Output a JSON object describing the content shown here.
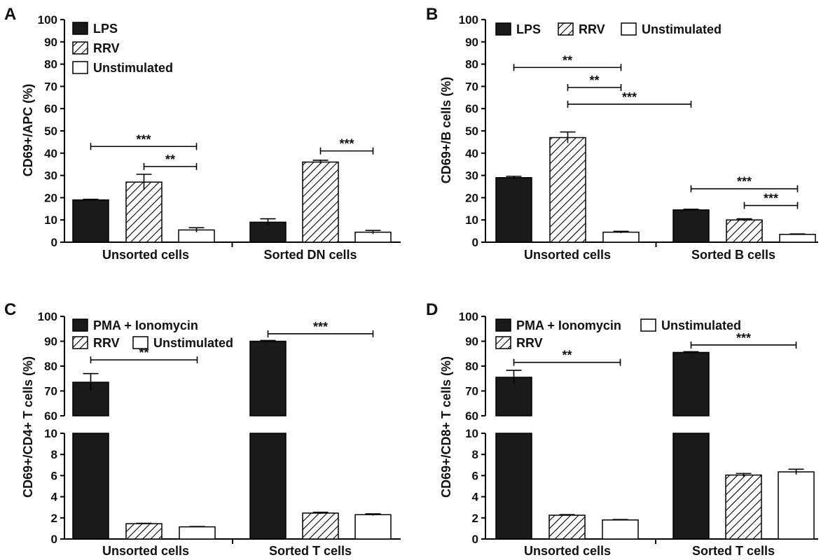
{
  "colors": {
    "lps_fill": "#1a1a1a",
    "axis": "#000000",
    "hatch": "#000000",
    "background": "#ffffff"
  },
  "chart_data": [
    {
      "panel": "A",
      "type": "bar",
      "ylabel": "CD69+/APC (%)",
      "ylim": [
        0,
        100
      ],
      "yticks": [
        0,
        10,
        20,
        30,
        40,
        50,
        60,
        70,
        80,
        90,
        100
      ],
      "categories": [
        "Unsorted cells",
        "Sorted DN cells"
      ],
      "series": [
        {
          "name": "LPS",
          "pattern": "solid",
          "values": [
            19,
            9
          ],
          "errors": [
            0.3,
            1.5
          ]
        },
        {
          "name": "RRV",
          "pattern": "hatch",
          "values": [
            27,
            36
          ],
          "errors": [
            3.5,
            0.8
          ]
        },
        {
          "name": "Unstimulated",
          "pattern": "white",
          "values": [
            5.5,
            4.5
          ],
          "errors": [
            1.0,
            0.8
          ]
        }
      ],
      "legend": {
        "placement": "top-left",
        "layout": "column"
      },
      "annotations": [
        {
          "from": [
            0,
            0
          ],
          "to": [
            0,
            2
          ],
          "y": 43,
          "label": "***"
        },
        {
          "from": [
            0,
            1
          ],
          "to": [
            0,
            2
          ],
          "y": 34,
          "label": "**"
        },
        {
          "from": [
            1,
            1
          ],
          "to": [
            1,
            2
          ],
          "y": 41,
          "label": "***"
        }
      ]
    },
    {
      "panel": "B",
      "type": "bar",
      "ylabel": "CD69+/B cells (%)",
      "ylim": [
        0,
        100
      ],
      "yticks": [
        0,
        10,
        20,
        30,
        40,
        50,
        60,
        70,
        80,
        90,
        100
      ],
      "categories": [
        "Unsorted cells",
        "Sorted B cells"
      ],
      "series": [
        {
          "name": "LPS",
          "pattern": "solid",
          "values": [
            29,
            14.5
          ],
          "errors": [
            0.6,
            0.3
          ]
        },
        {
          "name": "RRV",
          "pattern": "hatch",
          "values": [
            47,
            10
          ],
          "errors": [
            2.5,
            0.5
          ]
        },
        {
          "name": "Unstimulated",
          "pattern": "white",
          "values": [
            4.5,
            3.5
          ],
          "errors": [
            0.4,
            0.2
          ]
        }
      ],
      "legend": {
        "placement": "top",
        "layout": "row"
      },
      "annotations": [
        {
          "from": [
            0,
            0
          ],
          "to": [
            0,
            2
          ],
          "y": 78.5,
          "label": "**"
        },
        {
          "from": [
            0,
            1
          ],
          "to": [
            0,
            2
          ],
          "y": 69.5,
          "label": "**"
        },
        {
          "from": [
            0,
            1
          ],
          "to": [
            1,
            0
          ],
          "y": 62,
          "label": "***"
        },
        {
          "from": [
            1,
            0
          ],
          "to": [
            1,
            2
          ],
          "y": 24,
          "label": "***"
        },
        {
          "from": [
            1,
            1
          ],
          "to": [
            1,
            2
          ],
          "y": 16.5,
          "label": "***"
        }
      ]
    },
    {
      "panel": "C",
      "type": "bar",
      "ylabel": "CD69+/CD4+ T cells (%)",
      "broken_axis": {
        "lower_ylim": [
          0,
          10
        ],
        "lower_ticks": [
          0,
          2,
          4,
          6,
          8,
          10
        ],
        "upper_ylim": [
          60,
          100
        ],
        "upper_ticks": [
          60,
          70,
          80,
          90,
          100
        ]
      },
      "categories": [
        "Unsorted cells",
        "Sorted T cells"
      ],
      "series": [
        {
          "name": "PMA + Ionomycin",
          "pattern": "solid",
          "values": [
            73.5,
            90
          ],
          "errors": [
            3.5,
            0.3
          ]
        },
        {
          "name": "RRV",
          "pattern": "hatch",
          "values": [
            1.45,
            2.45
          ],
          "errors": [
            0.04,
            0.08
          ]
        },
        {
          "name": "Unstimulated",
          "pattern": "white",
          "values": [
            1.15,
            2.3
          ],
          "errors": [
            0.03,
            0.08
          ]
        }
      ],
      "legend": {
        "placement": "top-left",
        "layout": "grid-2col-rrv-row"
      },
      "annotations": [
        {
          "from": [
            0,
            0
          ],
          "to": [
            0,
            2
          ],
          "y": 82.5,
          "label": "**"
        },
        {
          "from": [
            1,
            0
          ],
          "to": [
            1,
            2
          ],
          "y": 93,
          "label": "***"
        }
      ]
    },
    {
      "panel": "D",
      "type": "bar",
      "ylabel": "CD69+/CD8+ T cells (%)",
      "broken_axis": {
        "lower_ylim": [
          0,
          10
        ],
        "lower_ticks": [
          0,
          2,
          4,
          6,
          8,
          10
        ],
        "upper_ylim": [
          60,
          100
        ],
        "upper_ticks": [
          60,
          70,
          80,
          90,
          100
        ]
      },
      "categories": [
        "Unsorted cells",
        "Sorted T cells"
      ],
      "series": [
        {
          "name": "PMA + Ionomycin",
          "pattern": "solid",
          "values": [
            75.5,
            85.5
          ],
          "errors": [
            2.8,
            0.3
          ]
        },
        {
          "name": "RRV",
          "pattern": "hatch",
          "values": [
            2.25,
            6.05
          ],
          "errors": [
            0.06,
            0.15
          ]
        },
        {
          "name": "Unstimulated",
          "pattern": "white",
          "values": [
            1.8,
            6.35
          ],
          "errors": [
            0.04,
            0.25
          ]
        }
      ],
      "legend": {
        "placement": "top-left",
        "layout": "grid-2col-unstim-first-row"
      },
      "annotations": [
        {
          "from": [
            0,
            0
          ],
          "to": [
            0,
            2
          ],
          "y": 81.5,
          "label": "**"
        },
        {
          "from": [
            1,
            0
          ],
          "to": [
            1,
            2
          ],
          "y": 88.5,
          "label": "***"
        }
      ]
    }
  ]
}
